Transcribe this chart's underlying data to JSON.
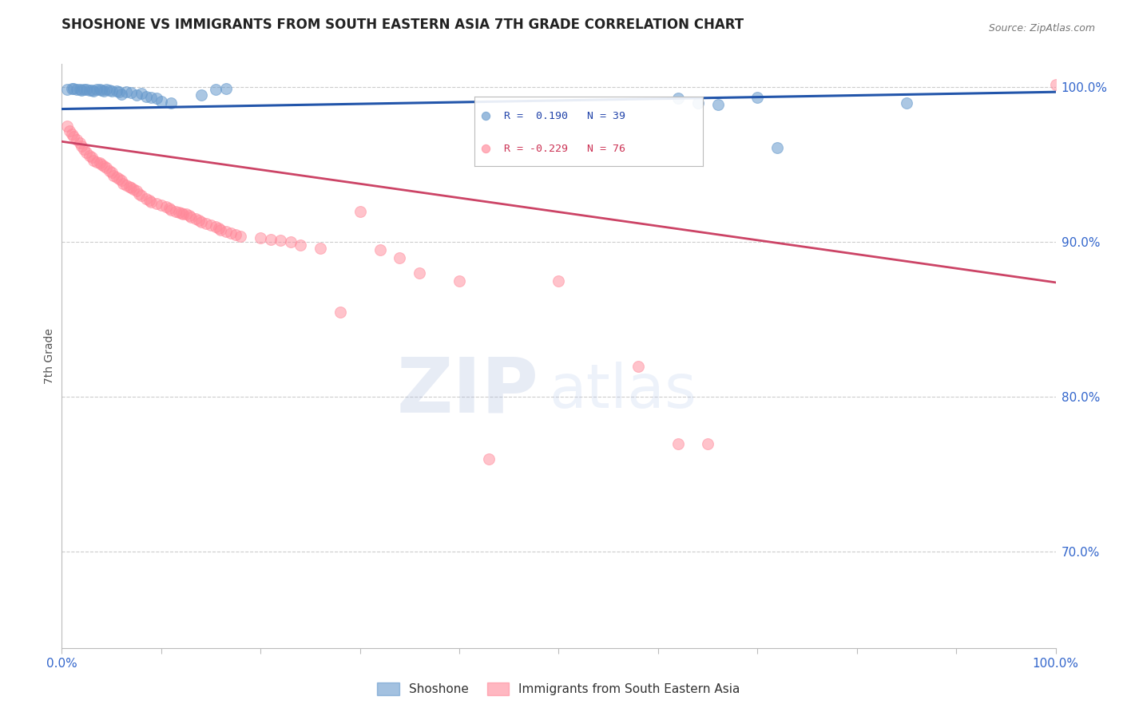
{
  "title": "SHOSHONE VS IMMIGRANTS FROM SOUTH EASTERN ASIA 7TH GRADE CORRELATION CHART",
  "source": "Source: ZipAtlas.com",
  "ylabel": "7th Grade",
  "right_ytick_labels": [
    "100.0%",
    "90.0%",
    "80.0%",
    "70.0%"
  ],
  "right_ytick_vals": [
    1.0,
    0.9,
    0.8,
    0.7
  ],
  "legend_blue_label": "Shoshone",
  "legend_pink_label": "Immigrants from South Eastern Asia",
  "legend_r_blue": "R =  0.190",
  "legend_n_blue": "N = 39",
  "legend_r_pink": "R = -0.229",
  "legend_n_pink": "N = 76",
  "blue_color": "#6699CC",
  "pink_color": "#FF8899",
  "trend_blue_color": "#2255AA",
  "trend_pink_color": "#CC4466",
  "xmin": 0.0,
  "xmax": 1.0,
  "ymin": 0.638,
  "ymax": 1.015,
  "blue_trend_x0": 0.0,
  "blue_trend_x1": 1.0,
  "blue_trend_y0": 0.986,
  "blue_trend_y1": 0.997,
  "pink_trend_x0": 0.0,
  "pink_trend_x1": 1.0,
  "pink_trend_y0": 0.965,
  "pink_trend_y1": 0.874,
  "blue_x": [
    0.005,
    0.01,
    0.012,
    0.015,
    0.018,
    0.02,
    0.022,
    0.025,
    0.028,
    0.03,
    0.032,
    0.035,
    0.038,
    0.04,
    0.042,
    0.045,
    0.048,
    0.05,
    0.055,
    0.058,
    0.06,
    0.065,
    0.07,
    0.075,
    0.08,
    0.085,
    0.09,
    0.095,
    0.1,
    0.11,
    0.14,
    0.155,
    0.165,
    0.62,
    0.64,
    0.66,
    0.7,
    0.72,
    0.85
  ],
  "blue_y": [
    0.9985,
    0.999,
    0.999,
    0.9985,
    0.9988,
    0.9982,
    0.9985,
    0.9988,
    0.998,
    0.9982,
    0.9978,
    0.9985,
    0.9988,
    0.998,
    0.9975,
    0.9985,
    0.9982,
    0.9978,
    0.9975,
    0.997,
    0.9955,
    0.997,
    0.9965,
    0.995,
    0.996,
    0.994,
    0.9935,
    0.993,
    0.991,
    0.99,
    0.995,
    0.9985,
    0.999,
    0.993,
    0.99,
    0.989,
    0.9935,
    0.961,
    0.99
  ],
  "pink_x": [
    0.005,
    0.008,
    0.01,
    0.012,
    0.015,
    0.018,
    0.02,
    0.022,
    0.025,
    0.028,
    0.03,
    0.032,
    0.035,
    0.038,
    0.04,
    0.042,
    0.045,
    0.048,
    0.05,
    0.052,
    0.055,
    0.058,
    0.06,
    0.062,
    0.065,
    0.068,
    0.07,
    0.072,
    0.075,
    0.078,
    0.08,
    0.085,
    0.088,
    0.09,
    0.095,
    0.1,
    0.105,
    0.108,
    0.11,
    0.115,
    0.118,
    0.12,
    0.122,
    0.125,
    0.128,
    0.13,
    0.135,
    0.138,
    0.14,
    0.145,
    0.15,
    0.155,
    0.158,
    0.16,
    0.165,
    0.17,
    0.175,
    0.18,
    0.2,
    0.21,
    0.22,
    0.23,
    0.24,
    0.26,
    0.28,
    0.3,
    0.32,
    0.34,
    0.36,
    0.4,
    0.43,
    0.5,
    0.58,
    0.62,
    0.65,
    1.0
  ],
  "pink_y": [
    0.975,
    0.972,
    0.97,
    0.968,
    0.966,
    0.964,
    0.962,
    0.96,
    0.958,
    0.956,
    0.955,
    0.953,
    0.952,
    0.951,
    0.95,
    0.949,
    0.948,
    0.946,
    0.945,
    0.943,
    0.942,
    0.941,
    0.94,
    0.938,
    0.937,
    0.936,
    0.935,
    0.934,
    0.933,
    0.931,
    0.93,
    0.928,
    0.927,
    0.926,
    0.925,
    0.924,
    0.923,
    0.922,
    0.921,
    0.92,
    0.9195,
    0.919,
    0.9185,
    0.918,
    0.917,
    0.916,
    0.915,
    0.914,
    0.913,
    0.912,
    0.911,
    0.91,
    0.909,
    0.908,
    0.907,
    0.906,
    0.905,
    0.904,
    0.903,
    0.902,
    0.901,
    0.9,
    0.898,
    0.896,
    0.855,
    0.92,
    0.895,
    0.89,
    0.88,
    0.875,
    0.76,
    0.875,
    0.82,
    0.77,
    0.77,
    1.002
  ]
}
